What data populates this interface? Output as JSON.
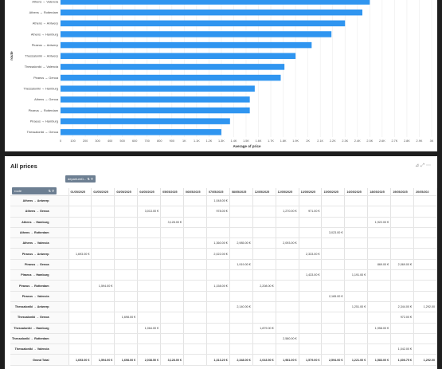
{
  "chart_data": {
    "type": "bar",
    "orientation": "horizontal",
    "categories": [
      "Athens → Valencia",
      "Athens → Rotterdam",
      "Athens → Antwerp",
      "Athens → Hamburg",
      "Piraeus → Antwerp",
      "Thessaloniki → Antwerp",
      "Thessaloniki → Valencia",
      "Piraeus → Genoa",
      "Thessaloniki → Hamburg",
      "Athens → Genoa",
      "Piraeus → Rotterdam",
      "Piraeus → Hamburg",
      "Thessaloniki → Genoa"
    ],
    "values": [
      2500,
      2440,
      2300,
      2190,
      2030,
      1900,
      1810,
      1780,
      1570,
      1530,
      1530,
      1370,
      1300
    ],
    "xlabel": "Average of price",
    "ylabel": "route",
    "xlim": [
      0,
      3000
    ],
    "xticks": [
      "0",
      "100",
      "200",
      "300",
      "400",
      "500",
      "600",
      "700",
      "800",
      "900",
      "1K",
      "1.1K",
      "1.2K",
      "1.3K",
      "1.4K",
      "1.5K",
      "1.6K",
      "1.7K",
      "1.8K",
      "1.9K",
      "2K",
      "2.1K",
      "2.2K",
      "2.3K",
      "2.4K",
      "2.5K",
      "2.6K",
      "2.7K",
      "2.8K",
      "2.9K",
      "3K"
    ],
    "grid": true,
    "bar_color": "#2f95f0"
  },
  "table": {
    "title": "All prices",
    "toolbar_icons": [
      "filter-icon",
      "expand-icon",
      "more-icon"
    ],
    "column_chip": "departureD...",
    "row_chip": "route",
    "dates": [
      "01/05/2025",
      "02/05/2025",
      "03/05/2025",
      "04/05/2025",
      "05/05/2025",
      "06/05/2025",
      "07/05/2025",
      "08/05/2025",
      "12/05/2025",
      "12/05/2025",
      "13/05/2025",
      "15/05/2025",
      "16/05/2025",
      "18/05/2025",
      "19/05/2025",
      "20/05/202"
    ],
    "rows": [
      {
        "route": "Athens → Antwerp",
        "cells": [
          "",
          "",
          "",
          "",
          "",
          "",
          "1,048.00 €",
          "",
          "",
          "",
          "",
          "",
          "",
          "",
          "",
          ""
        ]
      },
      {
        "route": "Athens → Genoa",
        "cells": [
          "",
          "",
          "",
          "3,013.00 €",
          "",
          "",
          "978.00 €",
          "",
          "",
          "1,270.00 €",
          "971.00 €",
          "",
          "",
          "",
          "",
          ""
        ]
      },
      {
        "route": "Athens → Hamburg",
        "cells": [
          "",
          "",
          "",
          "",
          "3,128.00 €",
          "",
          "",
          "",
          "",
          "",
          "",
          "",
          "",
          "1,922.00 €",
          "",
          ""
        ]
      },
      {
        "route": "Athens → Rotterdam",
        "cells": [
          "",
          "",
          "",
          "",
          "",
          "",
          "",
          "",
          "",
          "",
          "",
          "3,023.00 €",
          "",
          "",
          "",
          ""
        ]
      },
      {
        "route": "Athens → Valencia",
        "cells": [
          "",
          "",
          "",
          "",
          "",
          "",
          "1,360.00 €",
          "2,985.00 €",
          "",
          "2,093.00 €",
          "",
          "",
          "",
          "",
          "",
          ""
        ]
      },
      {
        "route": "Piraeus → Antwerp",
        "cells": [
          "1,693.00 €",
          "",
          "",
          "",
          "",
          "",
          "2,022.00 €",
          "",
          "",
          "",
          "2,333.00 €",
          "",
          "",
          "",
          "",
          ""
        ]
      },
      {
        "route": "Piraeus → Genoa",
        "cells": [
          "",
          "",
          "",
          "",
          "",
          "",
          "",
          "1,919.00 €",
          "",
          "",
          "",
          "",
          "",
          "869.00 €",
          "2,069.00 €",
          ""
        ]
      },
      {
        "route": "Piraeus → Hamburg",
        "cells": [
          "",
          "",
          "",
          "",
          "",
          "",
          "",
          "",
          "",
          "",
          "1,433.00 €",
          "",
          "1,191.00 €",
          "",
          "",
          ""
        ]
      },
      {
        "route": "Piraeus → Rotterdam",
        "cells": [
          "",
          "1,594.00 €",
          "",
          "",
          "",
          "",
          "1,158.00 €",
          "",
          "2,208.00 €",
          "",
          "",
          "",
          "",
          "",
          "",
          ""
        ]
      },
      {
        "route": "Piraeus → Valencia",
        "cells": [
          "",
          "",
          "",
          "",
          "",
          "",
          "",
          "",
          "",
          "",
          "",
          "2,165.00 €",
          "",
          "",
          "",
          ""
        ]
      },
      {
        "route": "Thessaloniki → Antwerp",
        "cells": [
          "",
          "",
          "",
          "",
          "",
          "",
          "",
          "2,140.00 €",
          "",
          "",
          "",
          "",
          "1,251.00 €",
          "",
          "2,344.00 €",
          "1,292.00"
        ]
      },
      {
        "route": "Thessaloniki → Genoa",
        "cells": [
          "",
          "",
          "1,698.00 €",
          "",
          "",
          "",
          "",
          "",
          "",
          "",
          "",
          "",
          "",
          "",
          "972.00 €",
          ""
        ]
      },
      {
        "route": "Thessaloniki → Hamburg",
        "cells": [
          "",
          "",
          "",
          "1,064.00 €",
          "",
          "",
          "",
          "",
          "1,879.00 €",
          "",
          "",
          "",
          "",
          "1,958.00 €",
          "",
          ""
        ]
      },
      {
        "route": "Thessaloniki → Rotterdam",
        "cells": [
          "",
          "",
          "",
          "",
          "",
          "",
          "",
          "",
          "",
          "2,580.00 €",
          "",
          "",
          "",
          "",
          "",
          ""
        ]
      },
      {
        "route": "Thessaloniki → Valencia",
        "cells": [
          "",
          "",
          "",
          "",
          "",
          "",
          "",
          "",
          "",
          "",
          "",
          "",
          "",
          "",
          "1,042.00 €",
          ""
        ]
      },
      {
        "route": "Grand Total",
        "cells": [
          "1,693.00 €",
          "1,594.00 €",
          "1,698.00 €",
          "2,038.50 €",
          "3,128.00 €",
          "",
          "1,313.20 €",
          "2,348.00 €",
          "2,043.50 €",
          "1,981.00 €",
          "1,579.00 €",
          "2,594.00 €",
          "1,221.00 €",
          "1,583.00 €",
          "1,606.75 €",
          "1,292.00"
        ]
      }
    ]
  }
}
